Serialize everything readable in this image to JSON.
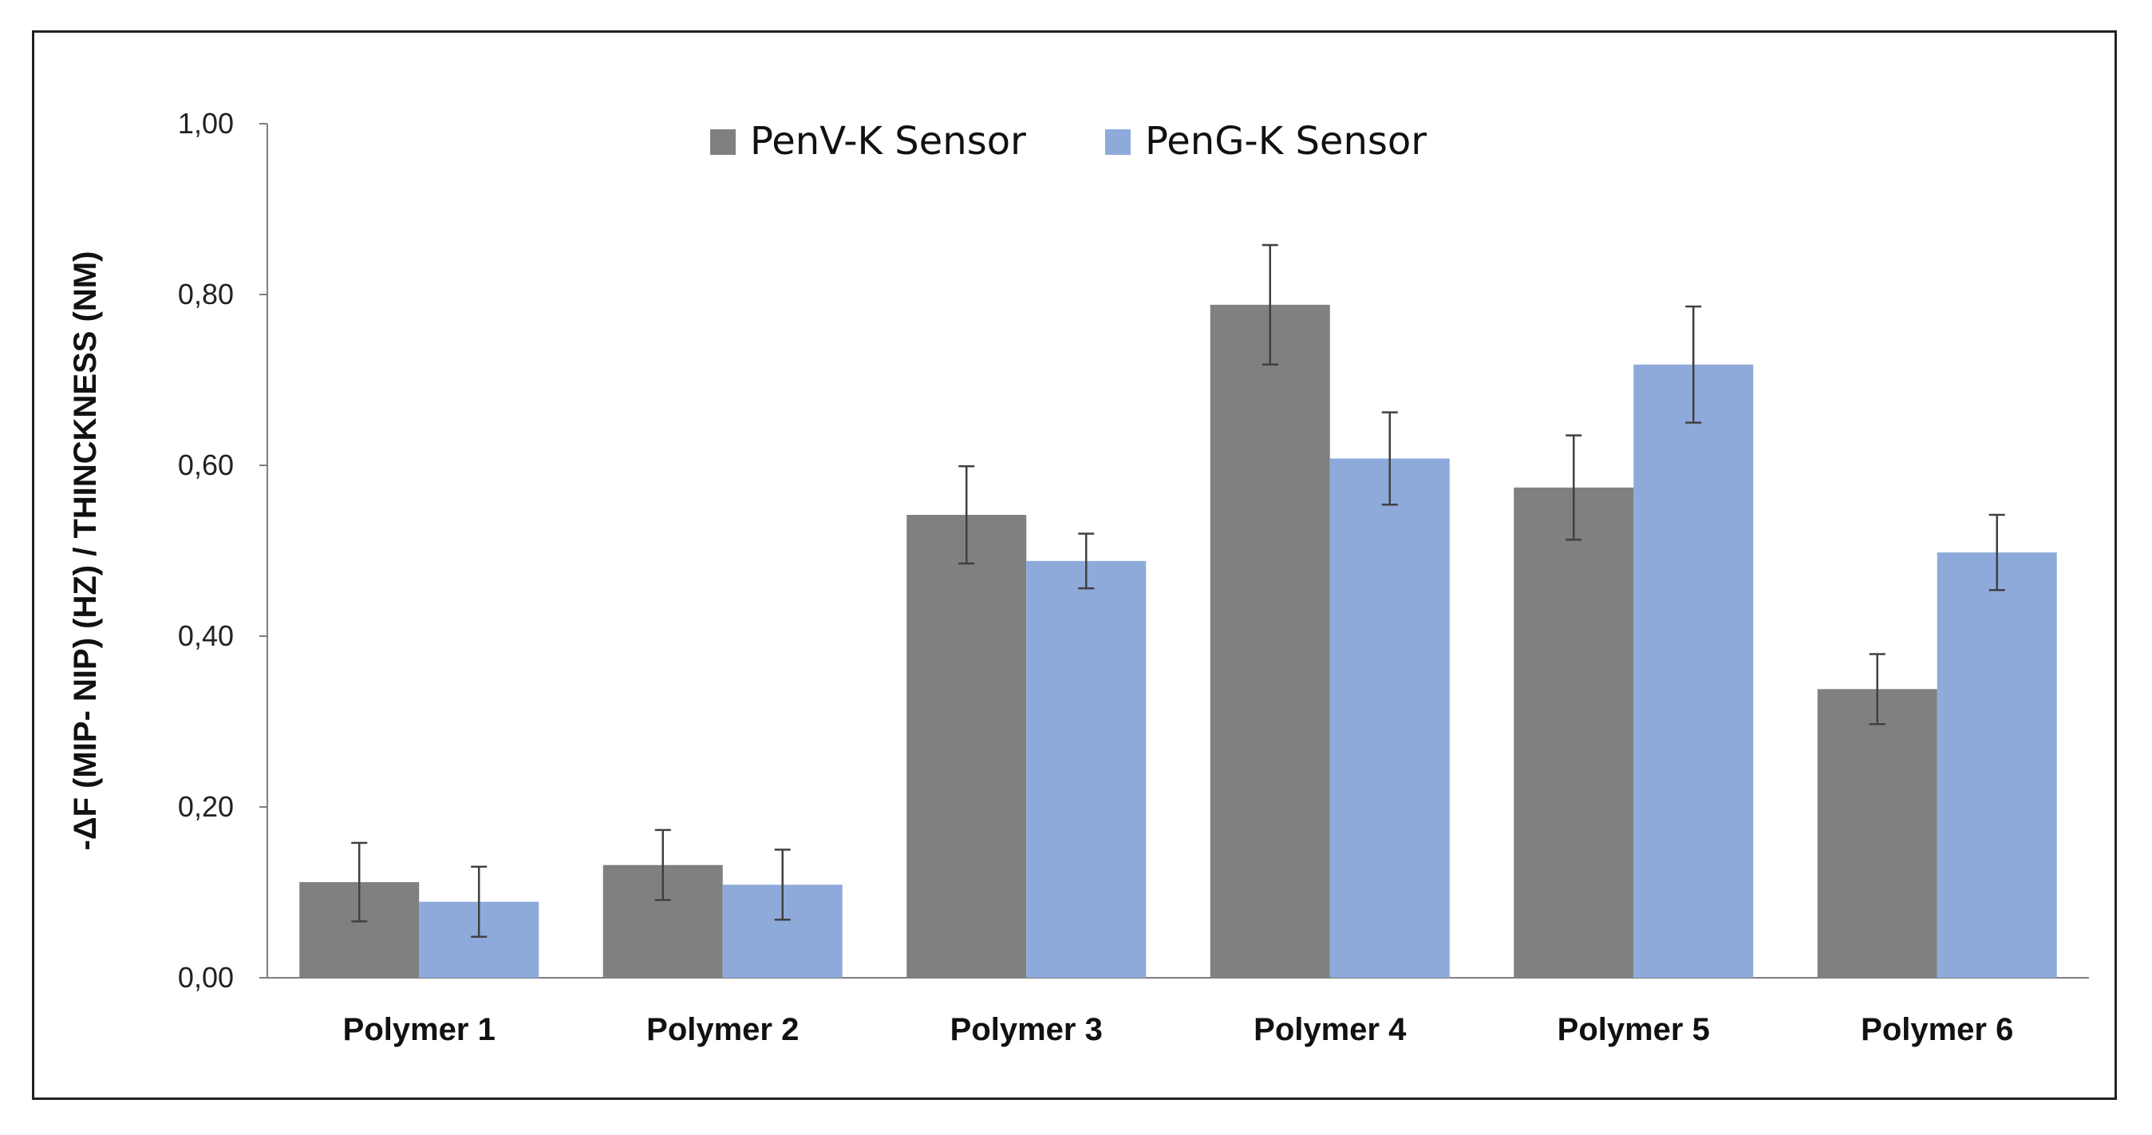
{
  "chart_data": {
    "type": "bar",
    "title": "",
    "xlabel": "",
    "ylabel": "-ΔF (MIP- NIP) (HZ) / THINCKNESS (NM)",
    "ylim": [
      0,
      1.0
    ],
    "yticks": [
      0.0,
      0.2,
      0.4,
      0.6,
      0.8,
      1.0
    ],
    "ytick_labels": [
      "0,00",
      "0,20",
      "0,40",
      "0,60",
      "0,80",
      "1,00"
    ],
    "categories": [
      "Polymer 1",
      "Polymer 2",
      "Polymer 3",
      "Polymer 4",
      "Polymer 5",
      "Polymer 6"
    ],
    "series": [
      {
        "name": "PenV-K Sensor",
        "color": "#808080",
        "values": [
          0.112,
          0.132,
          0.542,
          0.788,
          0.574,
          0.338
        ],
        "errors": [
          0.046,
          0.041,
          0.057,
          0.07,
          0.061,
          0.041
        ]
      },
      {
        "name": "PenG-K Sensor",
        "color": "#8eaadb",
        "values": [
          0.089,
          0.109,
          0.488,
          0.608,
          0.718,
          0.498
        ],
        "errors": [
          0.041,
          0.041,
          0.032,
          0.054,
          0.068,
          0.044
        ]
      }
    ],
    "legend_position": "top-center",
    "grid": false
  }
}
